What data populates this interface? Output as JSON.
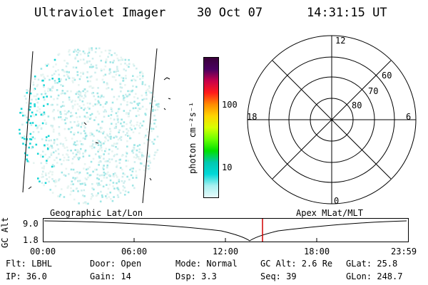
{
  "header": {
    "title": "Ultraviolet Imager",
    "date": "30 Oct 07",
    "time": "14:31:15 UT"
  },
  "colorbar": {
    "unit_label": "photon cm⁻²s⁻¹",
    "ticks": [
      "100",
      "10"
    ],
    "colors": [
      "#3a003a",
      "#4a0060",
      "#c8004a",
      "#ff1a1a",
      "#ff8a00",
      "#ffd400",
      "#d8ff00",
      "#6cff00",
      "#00e000",
      "#00c8b0",
      "#00d8d8",
      "#a8f0f0",
      "#e8fafa"
    ]
  },
  "polar_plot": {
    "lat_labels": [
      "60",
      "70",
      "80"
    ],
    "mlt_labels": {
      "top": "12",
      "right": "6",
      "bottom": "0",
      "left": "18"
    }
  },
  "labels": {
    "geographic": "Geographic Lat/Lon",
    "apex": "Apex MLat/MLT"
  },
  "altitude_strip": {
    "axis_title": "GC Alt",
    "y_ticks": [
      "9.0",
      "1.8"
    ],
    "x_ticks": [
      "00:00",
      "06:00",
      "12:00",
      "18:00",
      "23:59"
    ],
    "marker_color": "#d00000"
  },
  "info": {
    "flt": "Flt: LBHL",
    "door": "Door: Open",
    "mode": "Mode: Normal",
    "gc_alt": "GC Alt: 2.6 Re",
    "glat": "GLat:  25.8",
    "ip": "IP: 36.0",
    "gain": "Gain: 14",
    "dsp": "Dsp:    3.3",
    "seq": "Seq: 39",
    "glon": "GLon: 248.7"
  }
}
